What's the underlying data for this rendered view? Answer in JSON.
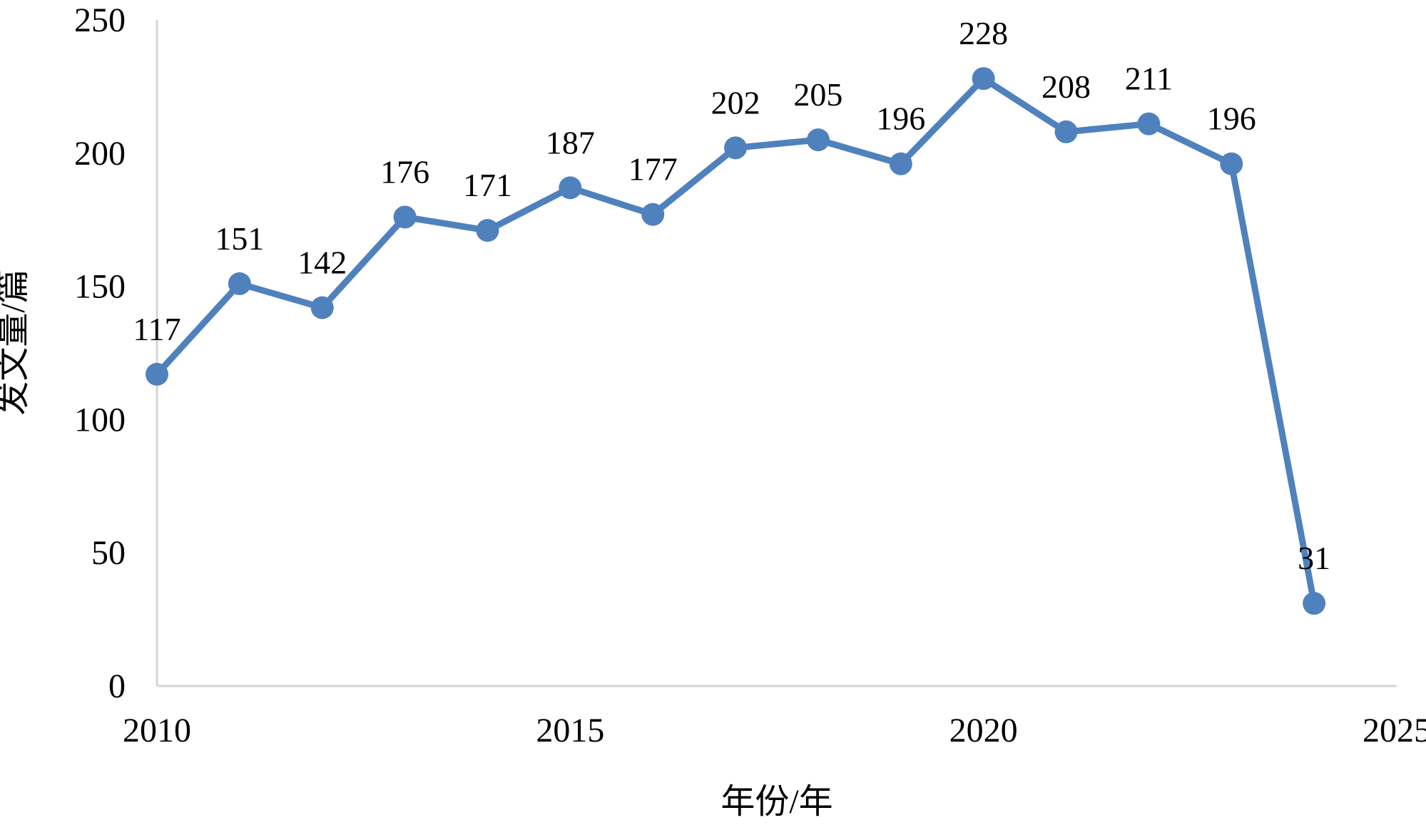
{
  "chart_data": {
    "type": "line",
    "title": "",
    "xlabel": "年份/年",
    "ylabel": "发文量/篇",
    "x": [
      2010,
      2011,
      2012,
      2013,
      2014,
      2015,
      2016,
      2017,
      2018,
      2019,
      2020,
      2021,
      2022,
      2023,
      2024
    ],
    "series": [
      {
        "name": "发文量",
        "values": [
          117,
          151,
          142,
          176,
          171,
          187,
          177,
          202,
          205,
          196,
          228,
          208,
          211,
          196,
          31
        ]
      }
    ],
    "x_ticks": [
      2010,
      2015,
      2020,
      2025
    ],
    "y_ticks": [
      0,
      50,
      100,
      150,
      200,
      250
    ],
    "xlim": [
      2010,
      2025
    ],
    "ylim": [
      0,
      250
    ],
    "grid": false,
    "legend": false,
    "data_labels_shown": true,
    "colors": {
      "line": "#4f81bd",
      "marker": "#4f81bd",
      "axis_line": "#d6d6d6",
      "text": "#000000",
      "background": "#ffffff"
    }
  }
}
